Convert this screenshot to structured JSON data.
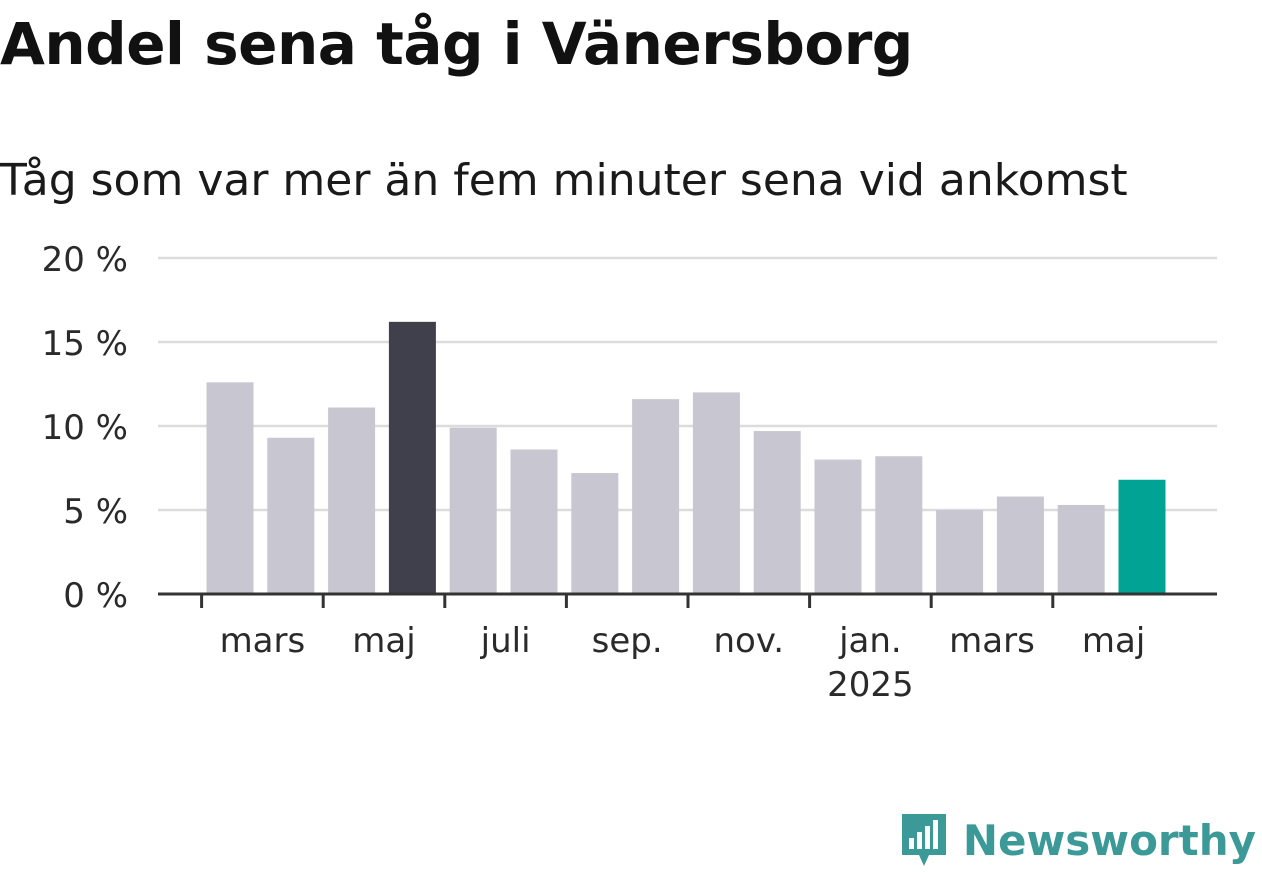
{
  "header": {
    "title": "Andel sena tåg i Vänersborg",
    "subtitle": "Tåg som var mer än fem minuter sena vid ankomst"
  },
  "brand": {
    "name": "Newsworthy",
    "icon": "newsworthy-logo-icon",
    "color": "#3b9a97"
  },
  "colors": {
    "default_bar": "#c8c7d1",
    "max_bar": "#403f4c",
    "latest_bar": "#00a394",
    "grid": "#dcdcdc",
    "axis": "#333333"
  },
  "chart_data": {
    "type": "bar",
    "title": "Andel sena tåg i Vänersborg",
    "subtitle": "Tåg som var mer än fem minuter sena vid ankomst",
    "categories": [
      "2024-02",
      "2024-03",
      "2024-04",
      "2024-05",
      "2024-06",
      "2024-07",
      "2024-08",
      "2024-09",
      "2024-10",
      "2024-11",
      "2024-12",
      "2025-01",
      "2025-02",
      "2025-03",
      "2025-04",
      "2025-05"
    ],
    "values": [
      12.6,
      9.3,
      11.1,
      16.2,
      9.9,
      8.6,
      7.2,
      11.6,
      12.0,
      9.7,
      8.0,
      8.2,
      5.0,
      5.8,
      5.3,
      6.8
    ],
    "highlight": {
      "max_index": 3,
      "latest_index": 15
    },
    "ylim": [
      0,
      20
    ],
    "yticks": [
      {
        "value": 0,
        "label": "0 %"
      },
      {
        "value": 5,
        "label": "5 %"
      },
      {
        "value": 10,
        "label": "10 %"
      },
      {
        "value": 15,
        "label": "15 %"
      },
      {
        "value": 20,
        "label": "20 %"
      }
    ],
    "xtick_labels": [
      {
        "index": 1,
        "label": "mars",
        "sublabel": ""
      },
      {
        "index": 3,
        "label": "maj",
        "sublabel": ""
      },
      {
        "index": 5,
        "label": "juli",
        "sublabel": ""
      },
      {
        "index": 7,
        "label": "sep.",
        "sublabel": ""
      },
      {
        "index": 9,
        "label": "nov.",
        "sublabel": ""
      },
      {
        "index": 11,
        "label": "jan.",
        "sublabel": "2025"
      },
      {
        "index": 13,
        "label": "mars",
        "sublabel": ""
      },
      {
        "index": 15,
        "label": "maj",
        "sublabel": ""
      }
    ],
    "xlabel": "",
    "ylabel": "",
    "grid": true,
    "legend": "none"
  }
}
